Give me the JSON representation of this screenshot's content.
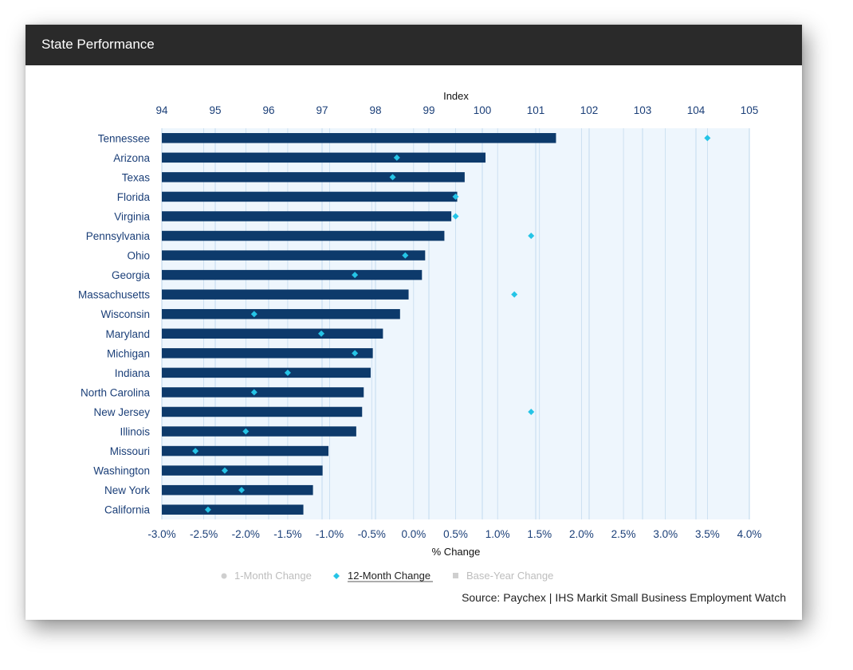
{
  "header": {
    "title": "State Performance"
  },
  "footer": {
    "source": "Source: Paychex | IHS Markit Small Business Employment Watch"
  },
  "legend": [
    {
      "label": "1-Month Change",
      "icon": "circle-icon",
      "active": false,
      "color": "#cfcfcf"
    },
    {
      "label": "12-Month Change",
      "icon": "diamond-icon",
      "active": true,
      "color": "#25c4e6"
    },
    {
      "label": "Base-Year Change",
      "icon": "square-icon",
      "active": false,
      "color": "#cfcfcf"
    }
  ],
  "colors": {
    "bar": "#0d3a6b",
    "marker": "#25c4e6",
    "axis_text": "#1b3f78",
    "plot_bg": "#eef6fd",
    "grid": "#b8d3ea"
  },
  "chart_data": {
    "type": "bar",
    "orientation": "horizontal",
    "categories": [
      "Tennessee",
      "Arizona",
      "Texas",
      "Florida",
      "Virginia",
      "Pennsylvania",
      "Ohio",
      "Georgia",
      "Massachusetts",
      "Wisconsin",
      "Maryland",
      "Michigan",
      "Indiana",
      "North Carolina",
      "New Jersey",
      "Illinois",
      "Missouri",
      "Washington",
      "New York",
      "California"
    ],
    "series": [
      {
        "name": "Index",
        "axis": "top",
        "mark": "bar",
        "values": [
          101.38,
          100.06,
          99.67,
          99.53,
          99.42,
          99.29,
          98.93,
          98.87,
          98.62,
          98.46,
          98.14,
          97.95,
          97.91,
          97.78,
          97.75,
          97.64,
          97.12,
          97.01,
          96.83,
          96.65
        ]
      },
      {
        "name": "12-Month Change",
        "axis": "bottom",
        "mark": "diamond",
        "values": [
          3.5,
          -0.2,
          -0.25,
          0.5,
          0.5,
          1.4,
          -0.1,
          -0.7,
          1.2,
          -1.9,
          -1.1,
          -0.7,
          -1.5,
          -1.9,
          1.4,
          -2.0,
          -2.6,
          -2.25,
          -2.05,
          -2.45
        ]
      }
    ],
    "top_axis": {
      "label": "Index",
      "range": [
        94,
        105
      ],
      "ticks": [
        "94",
        "95",
        "96",
        "97",
        "98",
        "99",
        "100",
        "101",
        "102",
        "103",
        "104",
        "105"
      ]
    },
    "bottom_axis": {
      "label": "% Change",
      "range": [
        -3.0,
        4.0
      ],
      "ticks": [
        "-3.0%",
        "-2.5%",
        "-2.0%",
        "-1.5%",
        "-1.0%",
        "-0.5%",
        "0.0%",
        "0.5%",
        "1.0%",
        "1.5%",
        "2.0%",
        "2.5%",
        "3.0%",
        "3.5%",
        "4.0%"
      ]
    },
    "grid": true
  }
}
